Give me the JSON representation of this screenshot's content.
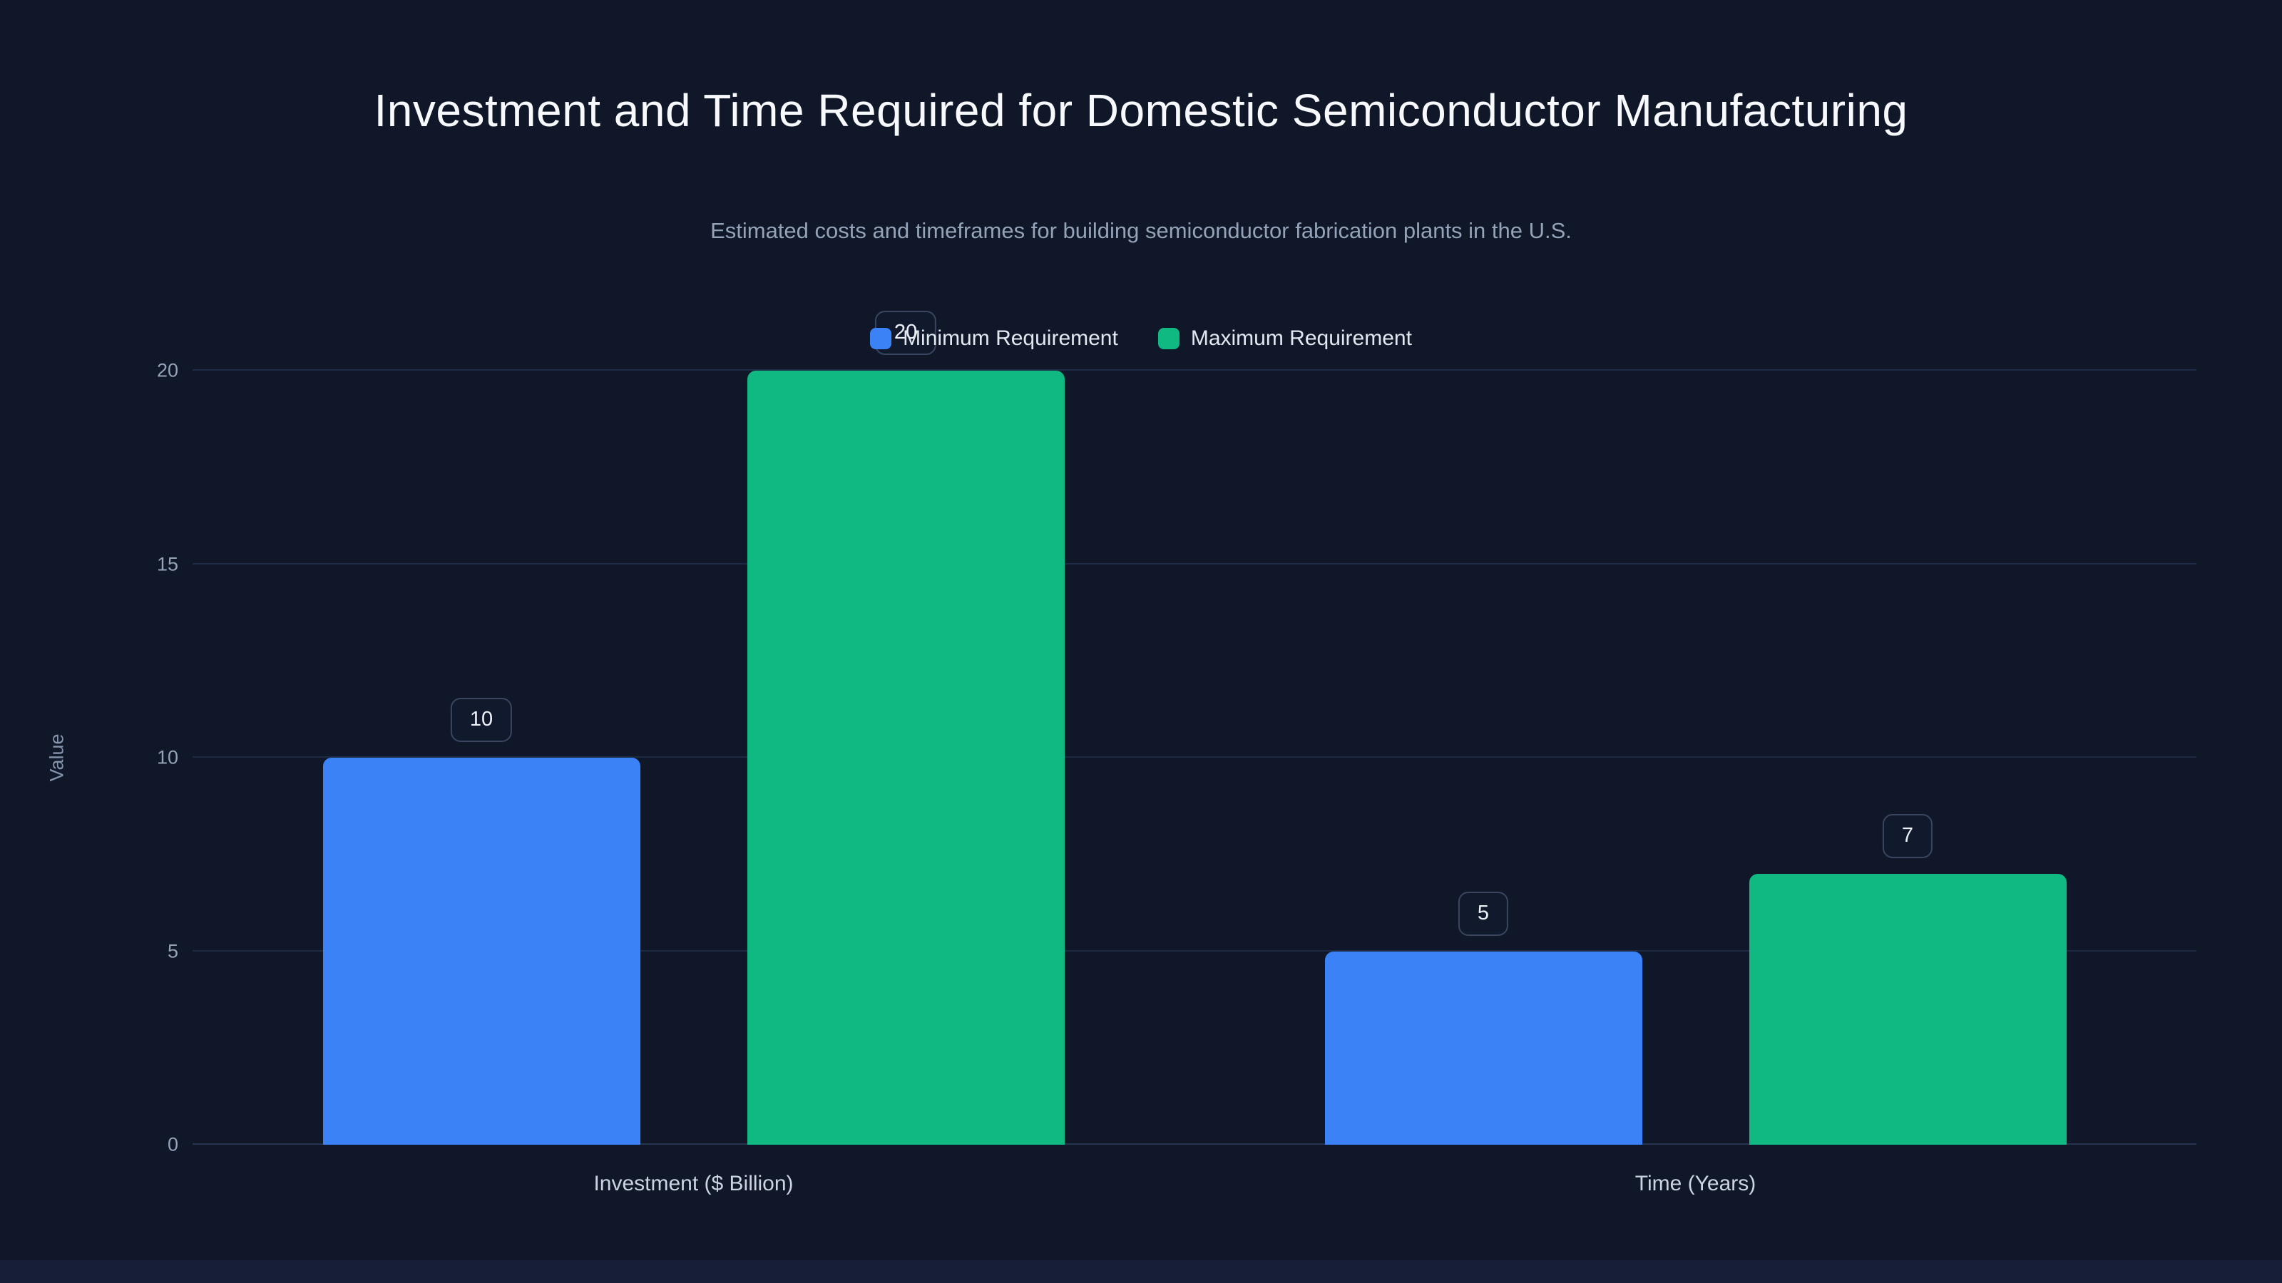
{
  "header": {
    "title": "Investment and Time Required for Domestic Semiconductor Manufacturing",
    "subtitle": "Estimated costs and timeframes for building semiconductor fabrication plants in the U.S."
  },
  "chart_data": {
    "type": "bar",
    "title": "Investment and Time Required for Domestic Semiconductor Manufacturing",
    "subtitle": "Estimated costs and timeframes for building semiconductor fabrication plants in the U.S.",
    "categories": [
      "Investment ($ Billion)",
      "Time (Years)"
    ],
    "series": [
      {
        "name": "Minimum Requirement",
        "color": "#3b82f6",
        "values": [
          10,
          5
        ]
      },
      {
        "name": "Maximum Requirement",
        "color": "#10b981",
        "values": [
          20,
          7
        ]
      }
    ],
    "xlabel": "",
    "ylabel": "Value",
    "ylim": [
      0,
      20
    ],
    "yticks": [
      0,
      5,
      10,
      15,
      20
    ],
    "grid": true,
    "legend_position": "top",
    "value_labels": true
  },
  "colors": {
    "background": "#0f1729",
    "title": "#f7f9fc",
    "subtitle": "#94a3b8",
    "gridline": "#1d2a44",
    "series_min": "#3b82f6",
    "series_max": "#10b981"
  }
}
